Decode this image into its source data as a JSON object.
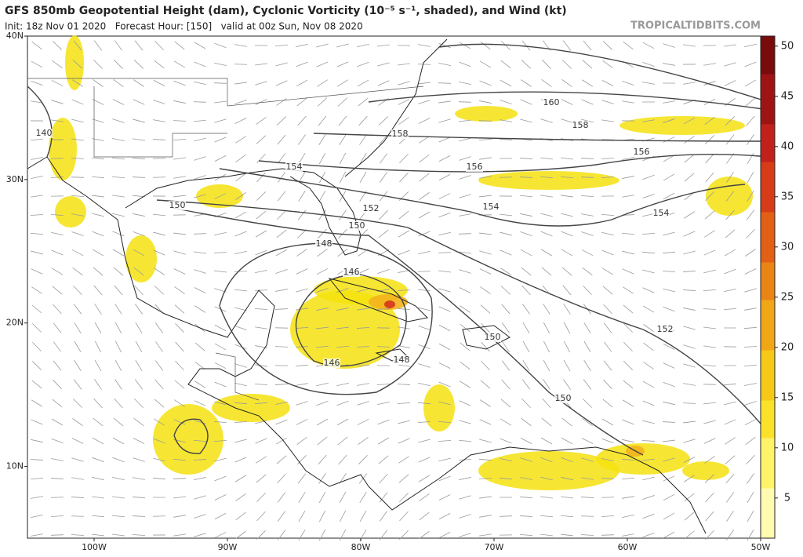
{
  "header": {
    "title": "GFS 850mb Geopotential Height (dam), Cyclonic Vorticity (10⁻⁵ s⁻¹, shaded), and Wind (kt)",
    "subtitle": "Init: 18z Nov 01 2020   Forecast Hour: [150]   valid at 00z Sun, Nov 08 2020",
    "source": "TROPICALTIDBITS.COM"
  },
  "map": {
    "xlim": [
      -105,
      -50
    ],
    "ylim": [
      5,
      40
    ],
    "xticks": [
      {
        "value": -100,
        "label": "100W"
      },
      {
        "value": -90,
        "label": "90W"
      },
      {
        "value": -80,
        "label": "80W"
      },
      {
        "value": -70,
        "label": "70W"
      },
      {
        "value": -60,
        "label": "60W"
      },
      {
        "value": -50,
        "label": "50W"
      }
    ],
    "yticks": [
      {
        "value": 40,
        "label": "40N"
      },
      {
        "value": 30,
        "label": "30N"
      },
      {
        "value": 20,
        "label": "20N"
      },
      {
        "value": 10,
        "label": "10N"
      }
    ],
    "contour_labels": [
      160,
      158,
      158,
      156,
      156,
      154,
      154,
      154,
      152,
      152,
      150,
      150,
      150,
      150,
      148,
      148,
      146,
      146,
      140
    ]
  },
  "colorbar": {
    "lim": [
      1,
      51
    ],
    "ticks": [
      5,
      10,
      15,
      20,
      25,
      30,
      35,
      40,
      45,
      50
    ]
  }
}
